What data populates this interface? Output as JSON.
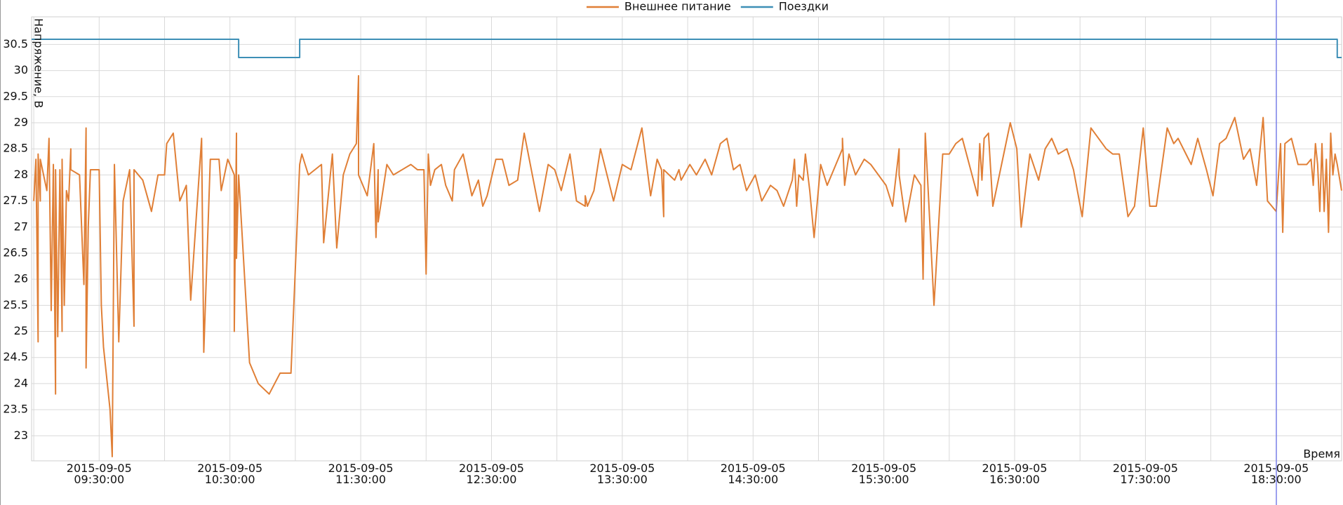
{
  "chart_data": {
    "type": "line",
    "x_label": "Время",
    "y_label": "Напряжение, В",
    "xlim": [
      "2015-09-05 08:59",
      "2015-09-05 19:00"
    ],
    "ylim": [
      22.52,
      31.03
    ],
    "yticks": [
      23,
      23.5,
      24,
      24.5,
      25,
      25.5,
      26,
      26.5,
      27,
      27.5,
      28,
      28.5,
      29,
      29.5,
      30,
      30.5
    ],
    "xticks": [
      {
        "value": "2015-09-05 09:30",
        "label": "2015-09-05\n09:30:00"
      },
      {
        "value": "2015-09-05 10:30",
        "label": "2015-09-05\n10:30:00"
      },
      {
        "value": "2015-09-05 11:30",
        "label": "2015-09-05\n11:30:00"
      },
      {
        "value": "2015-09-05 12:30",
        "label": "2015-09-05\n12:30:00"
      },
      {
        "value": "2015-09-05 13:30",
        "label": "2015-09-05\n13:30:00"
      },
      {
        "value": "2015-09-05 14:30",
        "label": "2015-09-05\n14:30:00"
      },
      {
        "value": "2015-09-05 15:30",
        "label": "2015-09-05\n15:30:00"
      },
      {
        "value": "2015-09-05 16:30",
        "label": "2015-09-05\n16:30:00"
      },
      {
        "value": "2015-09-05 17:30",
        "label": "2015-09-05\n17:30:00"
      },
      {
        "value": "2015-09-05 18:30",
        "label": "2015-09-05\n18:30:00"
      }
    ],
    "x_minor_ticks": [
      "2015-09-05 09:00",
      "2015-09-05 10:00",
      "2015-09-05 11:00",
      "2015-09-05 12:00",
      "2015-09-05 13:00",
      "2015-09-05 14:00",
      "2015-09-05 15:00",
      "2015-09-05 16:00",
      "2015-09-05 17:00",
      "2015-09-05 18:00"
    ],
    "grid": true,
    "legend": "top",
    "series": [
      {
        "name": "Внешнее питание",
        "color": "#e07f36",
        "x": [
          "2015-09-05 09:00",
          "2015-09-05 09:01",
          "2015-09-05 09:02",
          "2015-09-05 09:02",
          "2015-09-05 09:03",
          "2015-09-05 09:03",
          "2015-09-05 09:04",
          "2015-09-05 09:06",
          "2015-09-05 09:07",
          "2015-09-05 09:08",
          "2015-09-05 09:09",
          "2015-09-05 09:10",
          "2015-09-05 09:10",
          "2015-09-05 09:11",
          "2015-09-05 09:12",
          "2015-09-05 09:13",
          "2015-09-05 09:13",
          "2015-09-05 09:14",
          "2015-09-05 09:15",
          "2015-09-05 09:16",
          "2015-09-05 09:17",
          "2015-09-05 09:17",
          "2015-09-05 09:21",
          "2015-09-05 09:23",
          "2015-09-05 09:24",
          "2015-09-05 09:24",
          "2015-09-05 09:25",
          "2015-09-05 09:26",
          "2015-09-05 09:30",
          "2015-09-05 09:31",
          "2015-09-05 09:32",
          "2015-09-05 09:35",
          "2015-09-05 09:36",
          "2015-09-05 09:37",
          "2015-09-05 09:39",
          "2015-09-05 09:41",
          "2015-09-05 09:44",
          "2015-09-05 09:46",
          "2015-09-05 09:46",
          "2015-09-05 09:50",
          "2015-09-05 09:54",
          "2015-09-05 09:57",
          "2015-09-05 10:00",
          "2015-09-05 10:01",
          "2015-09-05 10:04",
          "2015-09-05 10:07",
          "2015-09-05 10:10",
          "2015-09-05 10:12",
          "2015-09-05 10:17",
          "2015-09-05 10:18",
          "2015-09-05 10:21",
          "2015-09-05 10:25",
          "2015-09-05 10:26",
          "2015-09-05 10:29",
          "2015-09-05 10:32",
          "2015-09-05 10:32",
          "2015-09-05 10:33",
          "2015-09-05 10:33",
          "2015-09-05 10:34",
          "2015-09-05 10:39",
          "2015-09-05 10:43",
          "2015-09-05 10:48",
          "2015-09-05 10:53",
          "2015-09-05 10:58",
          "2015-09-05 11:02",
          "2015-09-05 11:03",
          "2015-09-05 11:06",
          "2015-09-05 11:12",
          "2015-09-05 11:13",
          "2015-09-05 11:17",
          "2015-09-05 11:19",
          "2015-09-05 11:22",
          "2015-09-05 11:25",
          "2015-09-05 11:28",
          "2015-09-05 11:29",
          "2015-09-05 11:29",
          "2015-09-05 11:33",
          "2015-09-05 11:36",
          "2015-09-05 11:37",
          "2015-09-05 11:38",
          "2015-09-05 11:38",
          "2015-09-05 11:42",
          "2015-09-05 11:45",
          "2015-09-05 11:49",
          "2015-09-05 11:53",
          "2015-09-05 11:56",
          "2015-09-05 11:59",
          "2015-09-05 12:00",
          "2015-09-05 12:01",
          "2015-09-05 12:02",
          "2015-09-05 12:04",
          "2015-09-05 12:07",
          "2015-09-05 12:09",
          "2015-09-05 12:12",
          "2015-09-05 12:13",
          "2015-09-05 12:17",
          "2015-09-05 12:21",
          "2015-09-05 12:24",
          "2015-09-05 12:26",
          "2015-09-05 12:28",
          "2015-09-05 12:32",
          "2015-09-05 12:35",
          "2015-09-05 12:38",
          "2015-09-05 12:42",
          "2015-09-05 12:45",
          "2015-09-05 12:52",
          "2015-09-05 12:56",
          "2015-09-05 12:59",
          "2015-09-05 13:02",
          "2015-09-05 13:06",
          "2015-09-05 13:09",
          "2015-09-05 13:13",
          "2015-09-05 13:13",
          "2015-09-05 13:14",
          "2015-09-05 13:17",
          "2015-09-05 13:20",
          "2015-09-05 13:26",
          "2015-09-05 13:30",
          "2015-09-05 13:34",
          "2015-09-05 13:39",
          "2015-09-05 13:43",
          "2015-09-05 13:46",
          "2015-09-05 13:48",
          "2015-09-05 13:49",
          "2015-09-05 13:49",
          "2015-09-05 13:54",
          "2015-09-05 13:56",
          "2015-09-05 13:57",
          "2015-09-05 14:01",
          "2015-09-05 14:04",
          "2015-09-05 14:08",
          "2015-09-05 14:11",
          "2015-09-05 14:15",
          "2015-09-05 14:18",
          "2015-09-05 14:21",
          "2015-09-05 14:24",
          "2015-09-05 14:27",
          "2015-09-05 14:31",
          "2015-09-05 14:34",
          "2015-09-05 14:38",
          "2015-09-05 14:41",
          "2015-09-05 14:44",
          "2015-09-05 14:48",
          "2015-09-05 14:49",
          "2015-09-05 14:50",
          "2015-09-05 14:51",
          "2015-09-05 14:53",
          "2015-09-05 14:54",
          "2015-09-05 14:56",
          "2015-09-05 14:58",
          "2015-09-05 15:01",
          "2015-09-05 15:04",
          "2015-09-05 15:08",
          "2015-09-05 15:11",
          "2015-09-05 15:11",
          "2015-09-05 15:12",
          "2015-09-05 15:14",
          "2015-09-05 15:17",
          "2015-09-05 15:21",
          "2015-09-05 15:24",
          "2015-09-05 15:31",
          "2015-09-05 15:34",
          "2015-09-05 15:37",
          "2015-09-05 15:37",
          "2015-09-05 15:40",
          "2015-09-05 15:44",
          "2015-09-05 15:47",
          "2015-09-05 15:48",
          "2015-09-05 15:49",
          "2015-09-05 15:53",
          "2015-09-05 15:57",
          "2015-09-05 16:00",
          "2015-09-05 16:03",
          "2015-09-05 16:06",
          "2015-09-05 16:13",
          "2015-09-05 16:14",
          "2015-09-05 16:15",
          "2015-09-05 16:16",
          "2015-09-05 16:18",
          "2015-09-05 16:20",
          "2015-09-05 16:24",
          "2015-09-05 16:28",
          "2015-09-05 16:31",
          "2015-09-05 16:33",
          "2015-09-05 16:37",
          "2015-09-05 16:41",
          "2015-09-05 16:44",
          "2015-09-05 16:47",
          "2015-09-05 16:50",
          "2015-09-05 16:54",
          "2015-09-05 16:57",
          "2015-09-05 17:01",
          "2015-09-05 17:05",
          "2015-09-05 17:12",
          "2015-09-05 17:15",
          "2015-09-05 17:18",
          "2015-09-05 17:22",
          "2015-09-05 17:25",
          "2015-09-05 17:29",
          "2015-09-05 17:32",
          "2015-09-05 17:35",
          "2015-09-05 17:40",
          "2015-09-05 17:43",
          "2015-09-05 17:45",
          "2015-09-05 17:51",
          "2015-09-05 17:54",
          "2015-09-05 17:58",
          "2015-09-05 18:01",
          "2015-09-05 18:04",
          "2015-09-05 18:07",
          "2015-09-05 18:11",
          "2015-09-05 18:15",
          "2015-09-05 18:18",
          "2015-09-05 18:21",
          "2015-09-05 18:24",
          "2015-09-05 18:26",
          "2015-09-05 18:28",
          "2015-09-05 18:30",
          "2015-09-05 18:32",
          "2015-09-05 18:33",
          "2015-09-05 18:34",
          "2015-09-05 18:37",
          "2015-09-05 18:40",
          "2015-09-05 18:44",
          "2015-09-05 18:46",
          "2015-09-05 18:47",
          "2015-09-05 18:48",
          "2015-09-05 18:49",
          "2015-09-05 18:50",
          "2015-09-05 18:51",
          "2015-09-05 18:52",
          "2015-09-05 18:53",
          "2015-09-05 18:54",
          "2015-09-05 18:55",
          "2015-09-05 18:56",
          "2015-09-05 18:57",
          "2015-09-05 18:58",
          "2015-09-05 19:00"
        ],
        "values": [
          27.5,
          28.3,
          24.8,
          28.4,
          27.5,
          28.3,
          28.1,
          27.7,
          28.7,
          25.4,
          28.2,
          23.8,
          28.1,
          24.9,
          28.1,
          25.0,
          28.3,
          25.5,
          27.7,
          27.5,
          28.5,
          28.1,
          28.0,
          25.9,
          28.9,
          24.3,
          27.0,
          28.1,
          28.1,
          25.5,
          24.7,
          23.5,
          22.6,
          28.2,
          24.8,
          27.5,
          28.1,
          25.1,
          28.1,
          27.9,
          27.3,
          28.0,
          28.0,
          28.6,
          28.8,
          27.5,
          27.8,
          25.6,
          28.7,
          24.6,
          28.3,
          28.3,
          27.7,
          28.3,
          28.0,
          25.0,
          28.8,
          26.4,
          28.0,
          24.4,
          24.0,
          23.8,
          24.2,
          24.2,
          28.2,
          28.4,
          28.0,
          28.2,
          26.7,
          28.4,
          26.6,
          28.0,
          28.4,
          28.6,
          29.9,
          28.0,
          27.6,
          28.6,
          26.8,
          28.1,
          27.1,
          28.2,
          28.0,
          28.1,
          28.2,
          28.1,
          28.1,
          26.1,
          28.4,
          27.8,
          28.1,
          28.2,
          27.8,
          27.5,
          28.1,
          28.4,
          27.6,
          27.9,
          27.4,
          27.6,
          28.3,
          28.3,
          27.8,
          27.9,
          28.8,
          27.3,
          28.2,
          28.1,
          27.7,
          28.4,
          27.5,
          27.4,
          27.6,
          27.4,
          27.7,
          28.5,
          27.5,
          28.2,
          28.1,
          28.9,
          27.6,
          28.3,
          28.1,
          27.2,
          28.1,
          27.9,
          28.1,
          27.9,
          28.2,
          28.0,
          28.3,
          28.0,
          28.6,
          28.7,
          28.1,
          28.2,
          27.7,
          28.0,
          27.5,
          27.8,
          27.7,
          27.4,
          27.9,
          28.3,
          27.4,
          28.0,
          27.9,
          28.4,
          27.7,
          26.8,
          28.2,
          27.8,
          28.2,
          28.5,
          28.7,
          27.8,
          28.4,
          28.0,
          28.3,
          28.2,
          27.8,
          27.4,
          28.5,
          28.0,
          27.1,
          28.0,
          27.8,
          26.0,
          28.8,
          25.5,
          28.4,
          28.4,
          28.6,
          28.7,
          27.6,
          28.6,
          27.9,
          28.7,
          28.8,
          27.4,
          28.2,
          29.0,
          28.5,
          27.0,
          28.4,
          27.9,
          28.5,
          28.7,
          28.4,
          28.5,
          28.1,
          27.2,
          28.9,
          28.5,
          28.4,
          28.4,
          27.2,
          27.4,
          28.9,
          27.4,
          27.4,
          28.9,
          28.6,
          28.7,
          28.2,
          28.7,
          28.1,
          27.6,
          28.6,
          28.7,
          29.1,
          28.3,
          28.5,
          27.8,
          29.1,
          27.5,
          27.4,
          27.3,
          28.6,
          26.9,
          28.6,
          28.7,
          28.2,
          28.2,
          28.3,
          27.8,
          28.6,
          28.2,
          27.3,
          28.6,
          27.3,
          28.3,
          26.9,
          28.8,
          28.0,
          28.4,
          28.2,
          27.7
        ]
      },
      {
        "name": "Поездки",
        "color": "#3d8fb6",
        "x": [
          "2015-09-05 08:59",
          "2015-09-05 10:34",
          "2015-09-05 10:34",
          "2015-09-05 11:02",
          "2015-09-05 11:02",
          "2015-09-05 18:58",
          "2015-09-05 18:58",
          "2015-09-05 19:00"
        ],
        "values": [
          30.6,
          30.6,
          30.25,
          30.25,
          30.6,
          30.6,
          30.25,
          30.25
        ]
      }
    ]
  }
}
